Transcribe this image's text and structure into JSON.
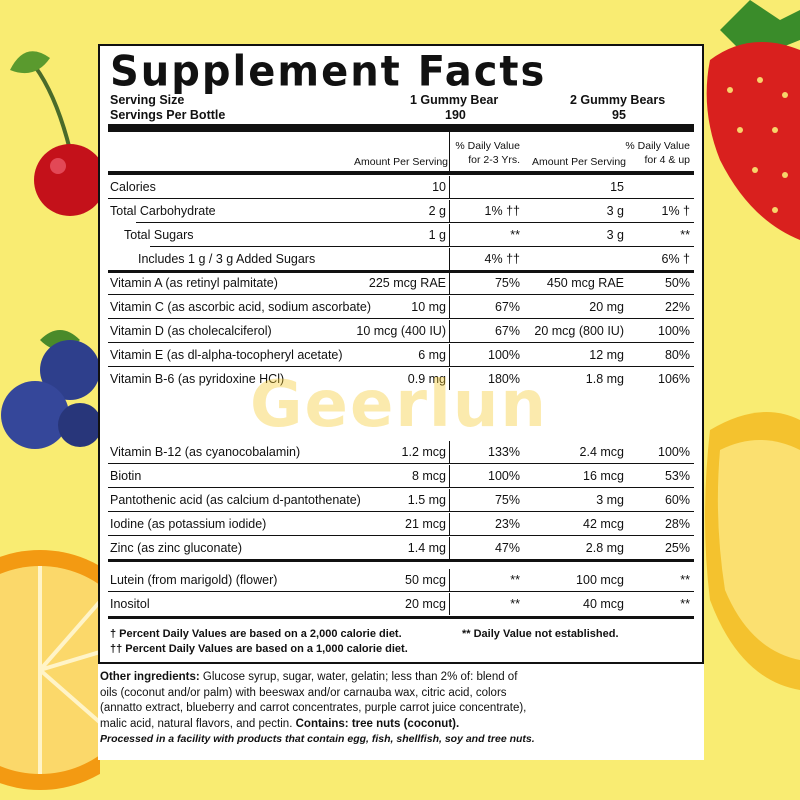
{
  "title": "Supplement Facts",
  "serving": {
    "size_label": "Serving Size",
    "per_bottle_label": "Servings Per Bottle",
    "size_a": "1 Gummy Bear",
    "size_b": "2 Gummy Bears",
    "count_a": "190",
    "count_b": "95"
  },
  "headers": {
    "amount_a": "Amount Per Serving",
    "dv_a_1": "% Daily Value",
    "dv_a_2": "for 2-3 Yrs.",
    "amount_b": "Amount Per Serving",
    "dv_b_1": "% Daily Value",
    "dv_b_2": "for 4 & up"
  },
  "rows": [
    {
      "name": "Calories",
      "a": "10",
      "dva": "",
      "b": "15",
      "dvb": ""
    },
    {
      "name": "Total Carbohydrate",
      "a": "2 g",
      "dva": "1% ††",
      "b": "3 g",
      "dvb": "1% †"
    },
    {
      "name": "Total Sugars",
      "a": "1 g",
      "dva": "**",
      "b": "3 g",
      "dvb": "**"
    },
    {
      "name": "Includes 1 g / 3 g Added Sugars",
      "a": "",
      "dva": "4% ††",
      "b": "",
      "dvb": "6% †"
    },
    {
      "name": "Vitamin A (as retinyl palmitate)",
      "a": "225 mcg RAE",
      "dva": "75%",
      "b": "450 mcg RAE",
      "dvb": "50%"
    },
    {
      "name": "Vitamin C (as ascorbic acid, sodium ascorbate)",
      "a": "10 mg",
      "dva": "67%",
      "b": "20 mg",
      "dvb": "22%"
    },
    {
      "name": "Vitamin D (as cholecalciferol)",
      "a": "10 mcg (400 IU)",
      "dva": "67%",
      "b": "20 mcg (800 IU)",
      "dvb": "100%"
    },
    {
      "name": "Vitamin E (as dl-alpha-tocopheryl acetate)",
      "a": "6 mg",
      "dva": "100%",
      "b": "12 mg",
      "dvb": "80%"
    },
    {
      "name": "Vitamin B-6 (as pyridoxine HCl)",
      "a": "0.9 mg",
      "dva": "180%",
      "b": "1.8 mg",
      "dvb": "106%"
    },
    {
      "name": "Vitamin B-12 (as cyanocobalamin)",
      "a": "1.2 mcg",
      "dva": "133%",
      "b": "2.4 mcg",
      "dvb": "100%"
    },
    {
      "name": "Biotin",
      "a": "8 mcg",
      "dva": "100%",
      "b": "16 mcg",
      "dvb": "53%"
    },
    {
      "name": "Pantothenic acid (as calcium d-pantothenate)",
      "a": "1.5 mg",
      "dva": "75%",
      "b": "3 mg",
      "dvb": "60%"
    },
    {
      "name": "Iodine (as potassium iodide)",
      "a": "21 mcg",
      "dva": "23%",
      "b": "42 mcg",
      "dvb": "28%"
    },
    {
      "name": "Zinc (as zinc gluconate)",
      "a": "1.4 mg",
      "dva": "47%",
      "b": "2.8 mg",
      "dvb": "25%"
    },
    {
      "name": "Lutein (from marigold) (flower)",
      "a": "50 mcg",
      "dva": "**",
      "b": "100 mcg",
      "dvb": "**"
    },
    {
      "name": "Inositol",
      "a": "20 mcg",
      "dva": "**",
      "b": "40 mcg",
      "dvb": "**"
    }
  ],
  "footnotes": {
    "f1": "† Percent Daily Values are based on a 2,000 calorie diet.",
    "f2": "†† Percent Daily Values are based on a 1,000 calorie diet.",
    "f3": "** Daily Value not established."
  },
  "other": {
    "label": "Other ingredients:",
    "text1": " Glucose syrup, sugar, water, gelatin; less than 2% of: blend of",
    "text2": "oils (coconut and/or palm) with beeswax and/or carnauba wax, citric acid, colors",
    "text3": "(annatto extract, blueberry and carrot concentrates, purple carrot juice concentrate),",
    "text4": "malic acid, natural flavors, and pectin. ",
    "contains_label": "Contains:",
    "contains_value": " tree nuts (coconut).",
    "facility": "Processed in a facility with products that contain egg, fish, shellfish, soy and tree nuts."
  },
  "watermark": "Geerlun",
  "colors": {
    "background": "#f9ec72",
    "panel": "#ffffff",
    "text": "#111111"
  }
}
